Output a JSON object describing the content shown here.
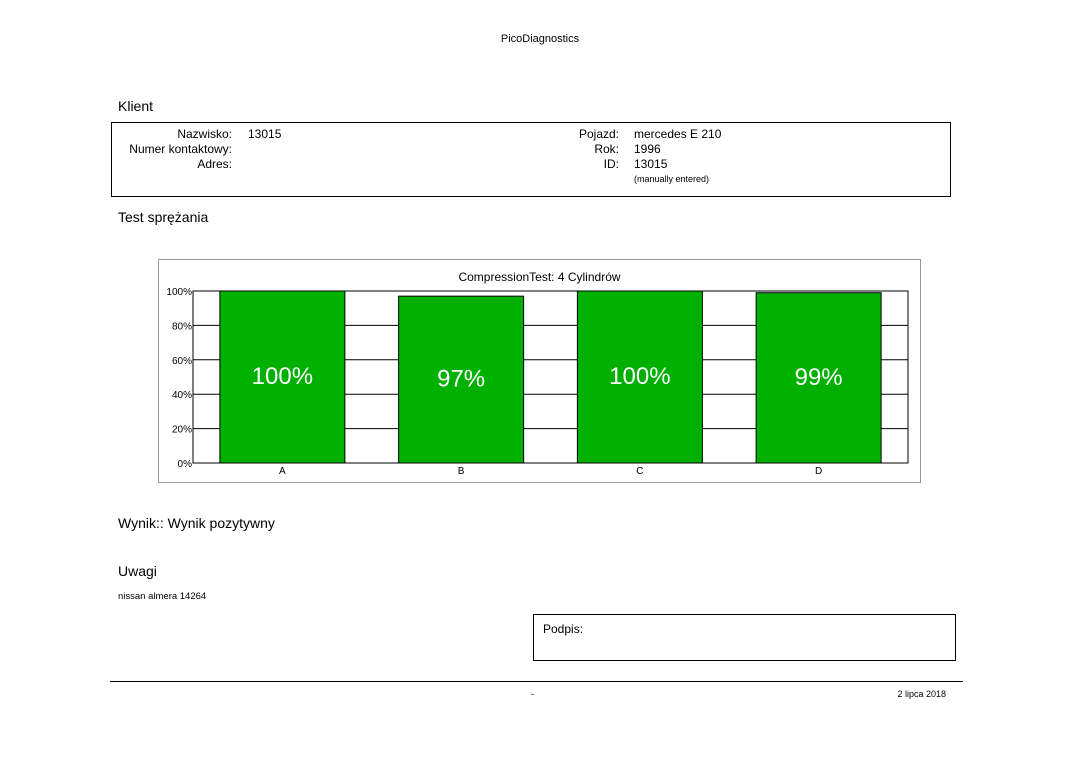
{
  "header": {
    "title": "PicoDiagnostics"
  },
  "client": {
    "section_label": "Klient",
    "surname_label": "Nazwisko:",
    "surname_value": "13015",
    "contact_label": "Numer kontaktowy:",
    "address_label": "Adres:",
    "vehicle_label": "Pojazd:",
    "vehicle_value": "mercedes E 210",
    "year_label": "Rok:",
    "year_value": "1996",
    "id_label": "ID:",
    "id_value": "13015",
    "id_note": "(manually entered)"
  },
  "test": {
    "section_label": "Test sprężania"
  },
  "chart_data": {
    "type": "bar",
    "title": "CompressionTest: 4 Cylindrów",
    "categories": [
      "A",
      "B",
      "C",
      "D"
    ],
    "values": [
      100,
      97,
      100,
      99
    ],
    "value_labels": [
      "100%",
      "97%",
      "100%",
      "99%"
    ],
    "yticks": [
      0,
      20,
      40,
      60,
      80,
      100
    ],
    "ytick_labels": [
      "0%",
      "20%",
      "40%",
      "60%",
      "80%",
      "100%"
    ],
    "ylim": [
      0,
      100
    ],
    "grid": true,
    "bar_color": "#00b000",
    "label_color": "#ffffff"
  },
  "result": {
    "text": "Wynik:: Wynik pozytywny"
  },
  "notes": {
    "section_label": "Uwagi",
    "text": "nissan almera 14264"
  },
  "signature": {
    "label": "Podpis:"
  },
  "footer": {
    "center": "-",
    "date": "2 lipca 2018"
  }
}
